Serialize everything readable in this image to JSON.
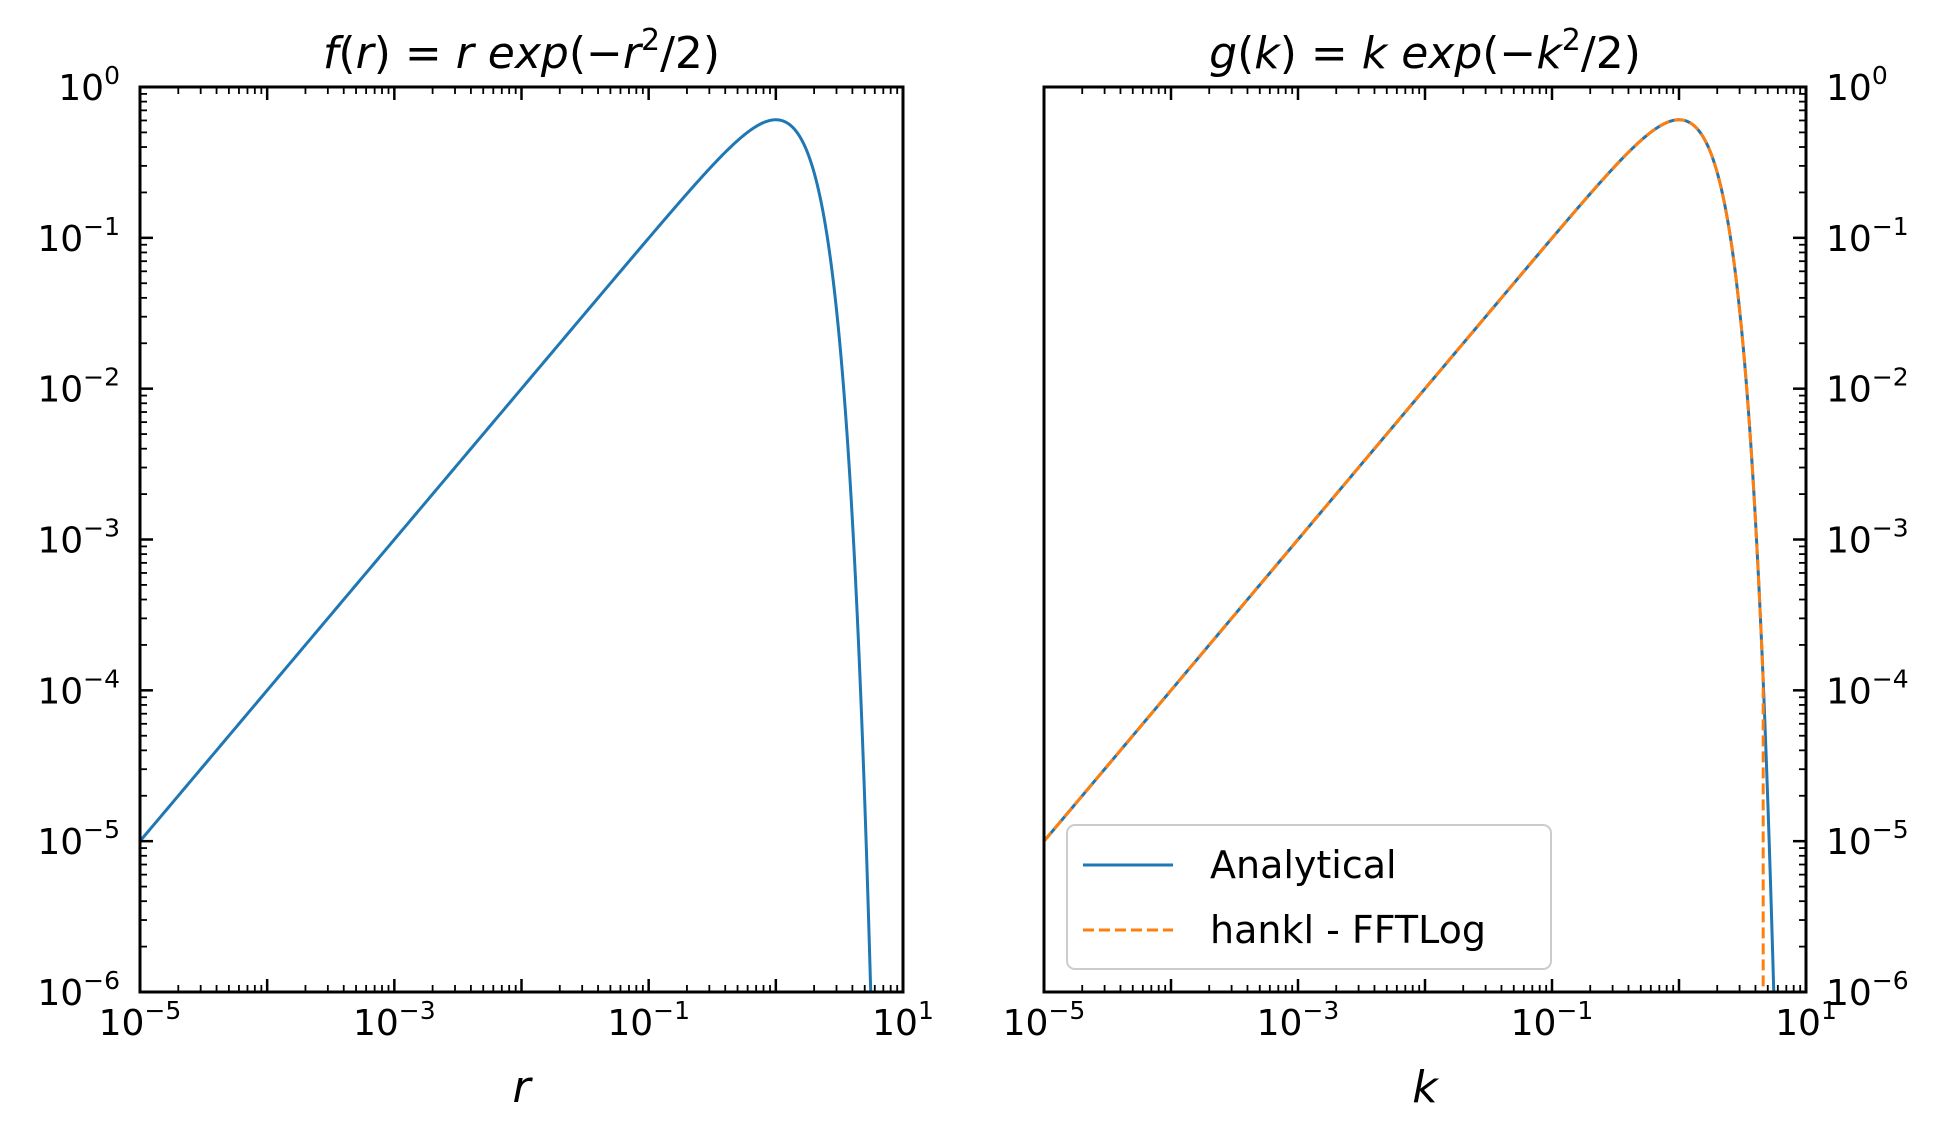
{
  "colors": {
    "analytical": "#1f77b4",
    "fftlog": "#ff7f0e",
    "axes": "#000000"
  },
  "chart_data": [
    {
      "type": "line",
      "title": {
        "fn": "f",
        "var": "r",
        "exp_text": "exp",
        "power": "2"
      },
      "xlabel": "r",
      "xscale": "log",
      "yscale": "log",
      "xlim": [
        1e-05,
        10
      ],
      "ylim": [
        1e-06,
        1
      ],
      "x_ticks": [
        {
          "base": "10",
          "exp": "−5"
        },
        {
          "base": "10",
          "exp": "−3"
        },
        {
          "base": "10",
          "exp": "−1"
        },
        {
          "base": "10",
          "exp": "1"
        }
      ],
      "y_ticks": [
        {
          "base": "10",
          "exp": "0"
        },
        {
          "base": "10",
          "exp": "−1"
        },
        {
          "base": "10",
          "exp": "−2"
        },
        {
          "base": "10",
          "exp": "−3"
        },
        {
          "base": "10",
          "exp": "−4"
        },
        {
          "base": "10",
          "exp": "−5"
        },
        {
          "base": "10",
          "exp": "−6"
        }
      ],
      "y_axis_side": "left",
      "series": [
        {
          "key": "analytical",
          "function": "x*exp(-x^2/2)",
          "style": "solid",
          "x": [
            1e-05,
            0.0001,
            0.001,
            0.01,
            0.1,
            0.3,
            0.6,
            1.0,
            1.5,
            2.0,
            3.0,
            4.0,
            5.0,
            5.5
          ],
          "y": [
            1e-05,
            0.0001,
            0.001,
            0.01,
            0.0995,
            0.287,
            0.501,
            0.607,
            0.487,
            0.271,
            0.0333,
            0.00134,
            1.9e-05,
            1.5e-06
          ]
        }
      ]
    },
    {
      "type": "line",
      "title": {
        "fn": "g",
        "var": "k",
        "exp_text": "exp",
        "power": "2"
      },
      "xlabel": "k",
      "xscale": "log",
      "yscale": "log",
      "xlim": [
        1e-05,
        10
      ],
      "ylim": [
        1e-06,
        1
      ],
      "x_ticks": [
        {
          "base": "10",
          "exp": "−5"
        },
        {
          "base": "10",
          "exp": "−3"
        },
        {
          "base": "10",
          "exp": "−1"
        },
        {
          "base": "10",
          "exp": "1"
        }
      ],
      "y_ticks": [
        {
          "base": "10",
          "exp": "0"
        },
        {
          "base": "10",
          "exp": "−1"
        },
        {
          "base": "10",
          "exp": "−2"
        },
        {
          "base": "10",
          "exp": "−3"
        },
        {
          "base": "10",
          "exp": "−4"
        },
        {
          "base": "10",
          "exp": "−5"
        },
        {
          "base": "10",
          "exp": "−6"
        }
      ],
      "y_axis_side": "right",
      "legend": {
        "position": "lower-left"
      },
      "series": [
        {
          "key": "analytical",
          "name": "Analytical",
          "function": "x*exp(-x^2/2)",
          "style": "solid",
          "x": [
            1e-05,
            0.0001,
            0.001,
            0.01,
            0.1,
            0.3,
            0.6,
            1.0,
            1.5,
            2.0,
            3.0,
            4.0,
            5.0,
            5.5
          ],
          "y": [
            1e-05,
            0.0001,
            0.001,
            0.01,
            0.0995,
            0.287,
            0.501,
            0.607,
            0.487,
            0.271,
            0.0333,
            0.00134,
            1.9e-05,
            1.5e-06
          ]
        },
        {
          "key": "fftlog",
          "name": "hankl - FFTLog",
          "function": "x*exp(-x^2/2)",
          "style": "dashed",
          "cutoff_x": 4.6,
          "x": [
            1e-05,
            0.0001,
            0.001,
            0.01,
            0.1,
            0.3,
            0.6,
            1.0,
            1.5,
            2.0,
            3.0,
            4.0,
            4.6
          ],
          "y": [
            1e-05,
            0.0001,
            0.001,
            0.01,
            0.0995,
            0.287,
            0.501,
            0.607,
            0.487,
            0.271,
            0.0333,
            0.00134,
            1e-06
          ]
        }
      ]
    }
  ]
}
